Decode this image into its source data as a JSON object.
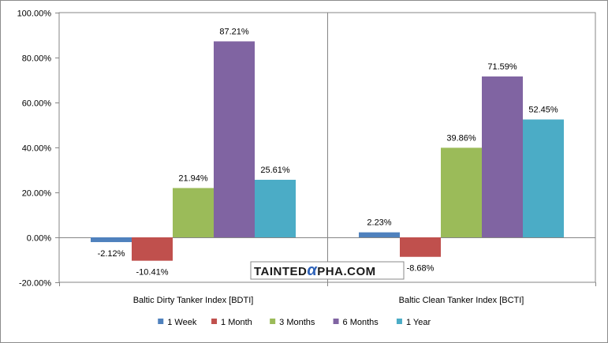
{
  "chart_data": {
    "type": "bar",
    "title": "",
    "xlabel": "",
    "ylabel": "",
    "categories": [
      "Baltic Dirty Tanker Index [BDTI]",
      "Baltic Clean Tanker Index [BCTI]"
    ],
    "series": [
      {
        "name": "1 Week",
        "color": "#4f81bd",
        "values": [
          -2.12,
          2.23
        ],
        "labels": [
          "-2.12%",
          "2.23%"
        ]
      },
      {
        "name": "1 Month",
        "color": "#c0504d",
        "values": [
          -10.41,
          -8.68
        ],
        "labels": [
          "-10.41%",
          "-8.68%"
        ]
      },
      {
        "name": "3 Months",
        "color": "#9bbb59",
        "values": [
          21.94,
          39.86
        ],
        "labels": [
          "21.94%",
          "39.86%"
        ]
      },
      {
        "name": "6 Months",
        "color": "#8064a2",
        "values": [
          87.21,
          71.59
        ],
        "labels": [
          "87.21%",
          "71.59%"
        ]
      },
      {
        "name": "1 Year",
        "color": "#4bacc6",
        "values": [
          25.61,
          52.45
        ],
        "labels": [
          "25.61%",
          "52.45%"
        ]
      }
    ],
    "ylim": [
      -20,
      100
    ],
    "yticks": [
      -20,
      0,
      20,
      40,
      60,
      80,
      100
    ],
    "ytick_labels": [
      "-20.00%",
      "0.00%",
      "20.00%",
      "40.00%",
      "60.00%",
      "80.00%",
      "100.00%"
    ],
    "grid": false,
    "legend_position": "bottom"
  },
  "watermark": {
    "text_left": "TAINTED",
    "alpha_glyph": "α",
    "text_right": "PHA.COM"
  }
}
